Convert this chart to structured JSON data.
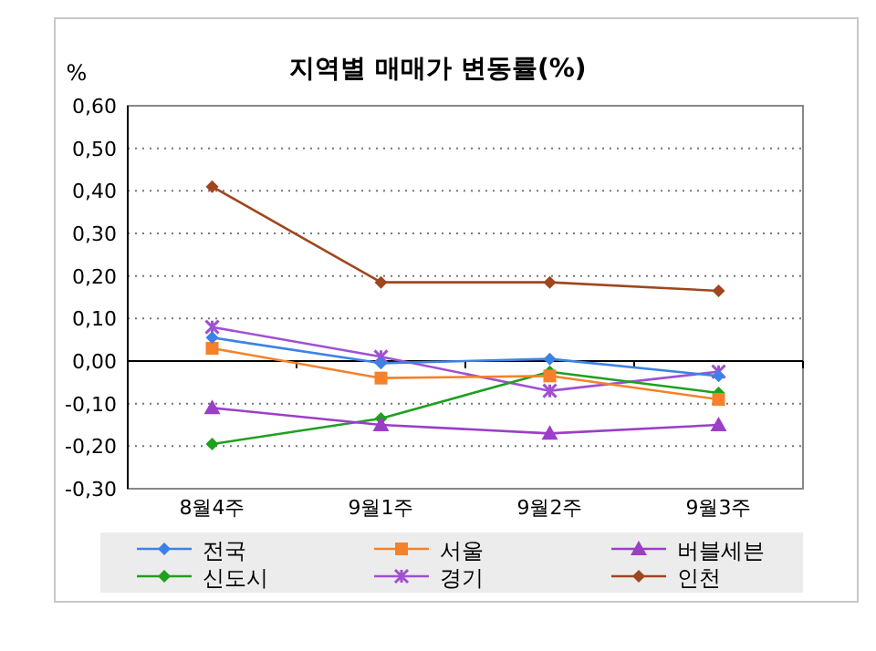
{
  "chart_data": {
    "type": "line",
    "title": "지역별 매매가 변동률(%)",
    "ylabel": "%",
    "categories": [
      "8월4주",
      "9월1주",
      "9월2주",
      "9월3주"
    ],
    "series": [
      {
        "name": "전국",
        "color": "#3c82e6",
        "marker": "diamond",
        "values": [
          0.055,
          -0.005,
          0.005,
          -0.035
        ]
      },
      {
        "name": "서울",
        "color": "#f5812a",
        "marker": "square",
        "values": [
          0.03,
          -0.04,
          -0.035,
          -0.09
        ]
      },
      {
        "name": "버블세븐",
        "color": "#9b3fc8",
        "marker": "triangle",
        "values": [
          -0.11,
          -0.15,
          -0.17,
          -0.15
        ]
      },
      {
        "name": "신도시",
        "color": "#1ea01e",
        "marker": "diamond",
        "values": [
          -0.195,
          -0.135,
          -0.025,
          -0.075
        ]
      },
      {
        "name": "경기",
        "color": "#a050d2",
        "marker": "cross",
        "values": [
          0.08,
          0.01,
          -0.07,
          -0.025
        ]
      },
      {
        "name": "인천",
        "color": "#a0461e",
        "marker": "diamond",
        "values": [
          0.41,
          0.185,
          0.185,
          0.165
        ]
      }
    ],
    "ylim": [
      -0.3,
      0.6
    ],
    "yticks": [
      {
        "value": -0.3,
        "label": "-0,30"
      },
      {
        "value": -0.2,
        "label": "-0,20"
      },
      {
        "value": -0.1,
        "label": "-0,10"
      },
      {
        "value": 0,
        "label": "0,00"
      },
      {
        "value": 0.1,
        "label": "0,10"
      },
      {
        "value": 0.2,
        "label": "0,20"
      },
      {
        "value": 0.3,
        "label": "0,30"
      },
      {
        "value": 0.4,
        "label": "0,40"
      },
      {
        "value": 0.5,
        "label": "0,50"
      },
      {
        "value": 0.6,
        "label": "0,60"
      }
    ],
    "grid": "y",
    "legend": "bottom",
    "line_style": "solid"
  }
}
